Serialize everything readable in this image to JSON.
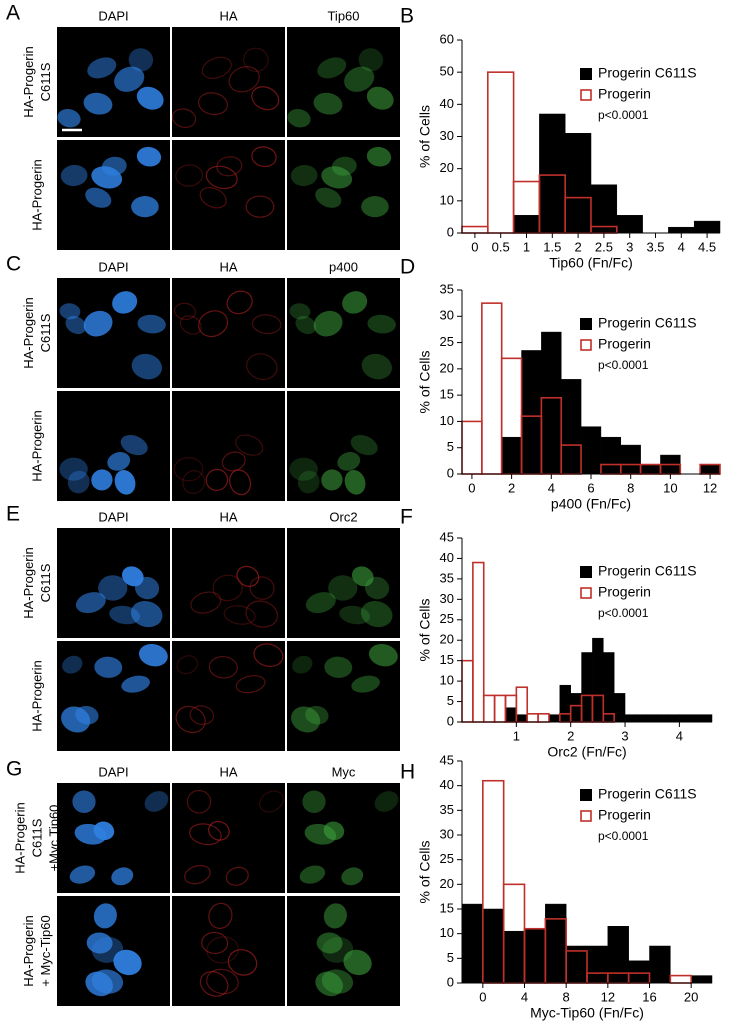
{
  "image_panels": [
    {
      "letter": "A",
      "columns": [
        "DAPI",
        "HA",
        "Tip60"
      ],
      "rows": [
        [
          "HA-Progerin",
          "C611S"
        ],
        [
          "HA-Progerin"
        ]
      ]
    },
    {
      "letter": "C",
      "columns": [
        "DAPI",
        "HA",
        "p400"
      ],
      "rows": [
        [
          "HA-Progerin",
          "C611S"
        ],
        [
          "HA-Progerin"
        ]
      ]
    },
    {
      "letter": "E",
      "columns": [
        "DAPI",
        "HA",
        "Orc2"
      ],
      "rows": [
        [
          "HA-Progerin",
          "C611S"
        ],
        [
          "HA-Progerin"
        ]
      ]
    },
    {
      "letter": "G",
      "columns": [
        "DAPI",
        "HA",
        "Myc"
      ],
      "rows": [
        [
          "HA-Progerin",
          "C611S",
          "+Myc Tip60"
        ],
        [
          "HA-Progerin",
          "+ Myc-Tip60"
        ]
      ]
    }
  ],
  "chart_data": [
    {
      "type": "histogram",
      "letter": "B",
      "xlabel": "Tip60 (Fn/Fc)",
      "ylabel": "% of Cells",
      "annotation": "p<0.0001",
      "bins": [
        -0.25,
        0.25,
        0.75,
        1.25,
        1.75,
        2.25,
        2.75,
        3.25,
        3.75,
        4.25,
        4.75
      ],
      "series": [
        {
          "name": "Progerin C611S",
          "color": "#000000",
          "filled": true,
          "values": [
            0,
            0,
            5.5,
            37,
            31,
            15,
            5.5,
            0,
            1.8,
            3.7
          ]
        },
        {
          "name": "Progerin",
          "color": "#c0302a",
          "filled": false,
          "values": [
            2,
            50,
            16,
            18,
            11,
            2,
            0,
            0,
            0,
            0
          ]
        }
      ],
      "xlim": [
        -0.25,
        4.75
      ],
      "xticks": [
        0,
        0.5,
        1,
        1.5,
        2,
        2.5,
        3,
        3.5,
        4,
        4.5
      ],
      "ylim": [
        0,
        60
      ],
      "yticks": [
        0,
        10,
        20,
        30,
        40,
        50,
        60
      ]
    },
    {
      "type": "histogram",
      "letter": "D",
      "xlabel": "p400 (Fn/Fc)",
      "ylabel": "% of Cells",
      "annotation": "p<0.0001",
      "bins": [
        -0.5,
        0.5,
        1.5,
        2.5,
        3.5,
        4.5,
        5.5,
        6.5,
        7.5,
        8.5,
        9.5,
        10.5,
        11.5,
        12.5
      ],
      "series": [
        {
          "name": "Progerin C611S",
          "color": "#000000",
          "filled": true,
          "values": [
            0,
            0,
            7,
            23.5,
            27,
            18,
            9,
            7,
            5.5,
            1.8,
            3.6,
            0,
            1.8
          ]
        },
        {
          "name": "Progerin",
          "color": "#c0302a",
          "filled": false,
          "values": [
            10,
            32.5,
            22,
            11,
            14.5,
            5.5,
            0,
            1.8,
            1.8,
            1.8,
            1.8,
            0,
            1.8
          ]
        }
      ],
      "xlim": [
        -0.5,
        12.5
      ],
      "xticks": [
        0,
        2,
        4,
        6,
        8,
        10,
        12
      ],
      "ylim": [
        0,
        35
      ],
      "yticks": [
        0,
        5,
        10,
        15,
        20,
        25,
        30,
        35
      ]
    },
    {
      "type": "histogram",
      "letter": "F",
      "xlabel": "Orc2 (Fn/Fc)",
      "ylabel": "% of Cells",
      "annotation": "p<0.0001",
      "bins": [
        0,
        0.2,
        0.4,
        0.6,
        0.8,
        1.0,
        1.2,
        1.4,
        1.6,
        1.8,
        2.0,
        2.2,
        2.4,
        2.6,
        2.8,
        3.0,
        3.2,
        3.4,
        3.6,
        3.8,
        4.0,
        4.2,
        4.4,
        4.6
      ],
      "series": [
        {
          "name": "Progerin C611S",
          "color": "#000000",
          "filled": true,
          "values": [
            0,
            0,
            0,
            0,
            3.5,
            1.8,
            0,
            0,
            1.8,
            9,
            7,
            17,
            20.5,
            17,
            7,
            1.8,
            1.8,
            1.8,
            1.8,
            1.8,
            1.8,
            1.8,
            1.8
          ]
        },
        {
          "name": "Progerin",
          "color": "#c0302a",
          "filled": false,
          "values": [
            15,
            39,
            6.5,
            6.5,
            6.5,
            8.5,
            2,
            2,
            0,
            2,
            4,
            6.5,
            6.5,
            2,
            0,
            0,
            0,
            0,
            0,
            0,
            0,
            0,
            0
          ]
        }
      ],
      "xlim": [
        0,
        4.6
      ],
      "xticks": [
        1,
        2,
        3,
        4
      ],
      "ylim": [
        0,
        45
      ],
      "yticks": [
        0,
        5,
        10,
        15,
        20,
        25,
        30,
        35,
        40,
        45
      ]
    },
    {
      "type": "histogram",
      "letter": "H",
      "xlabel": "Myc-Tip60 (Fn/Fc)",
      "ylabel": "% of Cells",
      "annotation": "p<0.0001",
      "bins": [
        -2,
        0,
        2,
        4,
        6,
        8,
        10,
        12,
        14,
        16,
        18,
        20,
        22
      ],
      "series": [
        {
          "name": "Progerin C611S",
          "color": "#000000",
          "filled": true,
          "values": [
            16,
            15,
            10.5,
            11,
            16,
            7.5,
            7.5,
            11.5,
            4.5,
            7.5,
            0,
            1.5
          ]
        },
        {
          "name": "Progerin",
          "color": "#c0302a",
          "filled": false,
          "values": [
            0,
            41,
            20,
            11,
            13,
            6.5,
            2,
            2,
            2,
            0,
            1.5,
            0
          ]
        }
      ],
      "xlim": [
        -2,
        22
      ],
      "xticks": [
        0,
        4,
        8,
        12,
        16,
        20
      ],
      "ylim": [
        0,
        45
      ],
      "yticks": [
        0,
        5,
        10,
        15,
        20,
        25,
        30,
        35,
        40,
        45
      ]
    }
  ]
}
